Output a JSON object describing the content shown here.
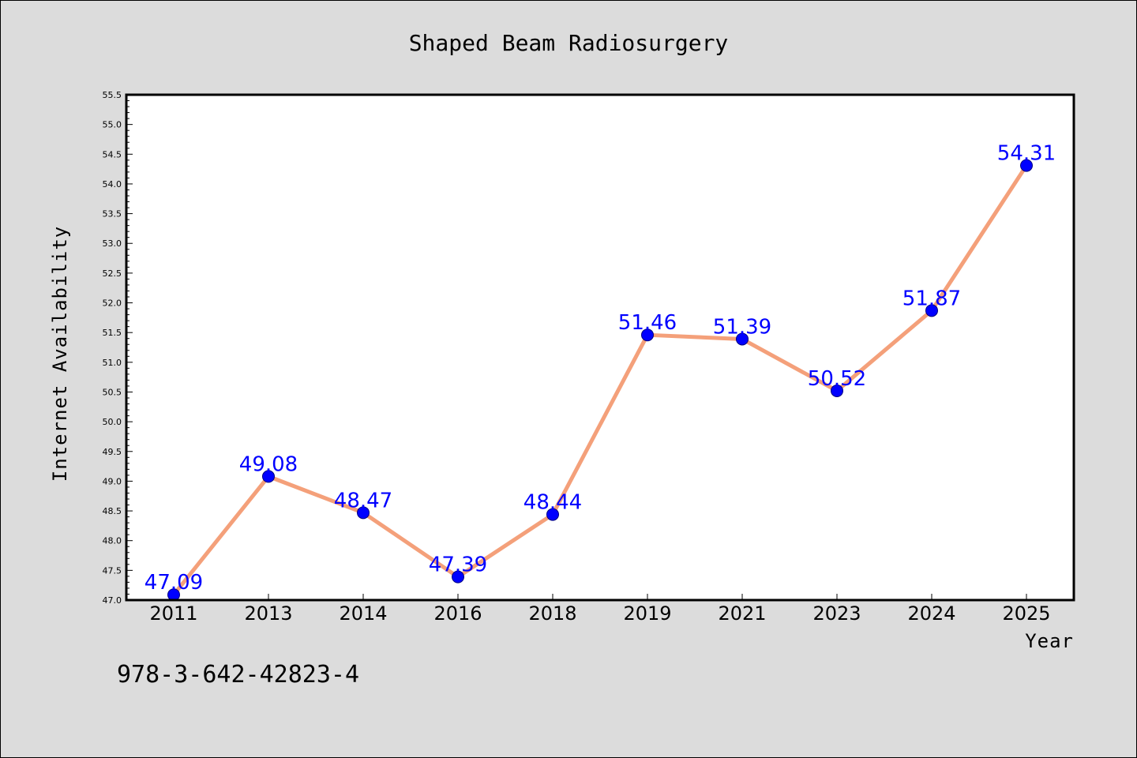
{
  "colors": {
    "background": "#dcdcdc",
    "plot_background": "#ffffff",
    "line": "#f4a07a",
    "marker": "#0000ff",
    "data_label": "#0000ff"
  },
  "footer_code": "978-3-642-42823-4",
  "chart_data": {
    "type": "line",
    "title": "Shaped Beam Radiosurgery",
    "xlabel": "Year",
    "ylabel": "Internet Availability",
    "categories": [
      "2011",
      "2013",
      "2014",
      "2016",
      "2018",
      "2019",
      "2021",
      "2023",
      "2024",
      "2025"
    ],
    "series": [
      {
        "values": [
          47.09,
          49.08,
          48.47,
          47.39,
          48.44,
          51.46,
          51.39,
          50.52,
          51.87,
          54.31
        ],
        "labels": [
          "47.09",
          "49.08",
          "48.47",
          "47.39",
          "48.44",
          "51.46",
          "51.39",
          "50.52",
          "51.87",
          "54.31"
        ]
      }
    ],
    "ylim": [
      47.0,
      55.5
    ],
    "yticks": [
      "47.0",
      "47.5",
      "48.0",
      "48.5",
      "49.0",
      "49.5",
      "50.0",
      "50.5",
      "51.0",
      "51.5",
      "52.0",
      "52.5",
      "53.0",
      "53.5",
      "54.0",
      "54.5",
      "55.0",
      "55.5"
    ],
    "grid": false,
    "legend": "none"
  }
}
